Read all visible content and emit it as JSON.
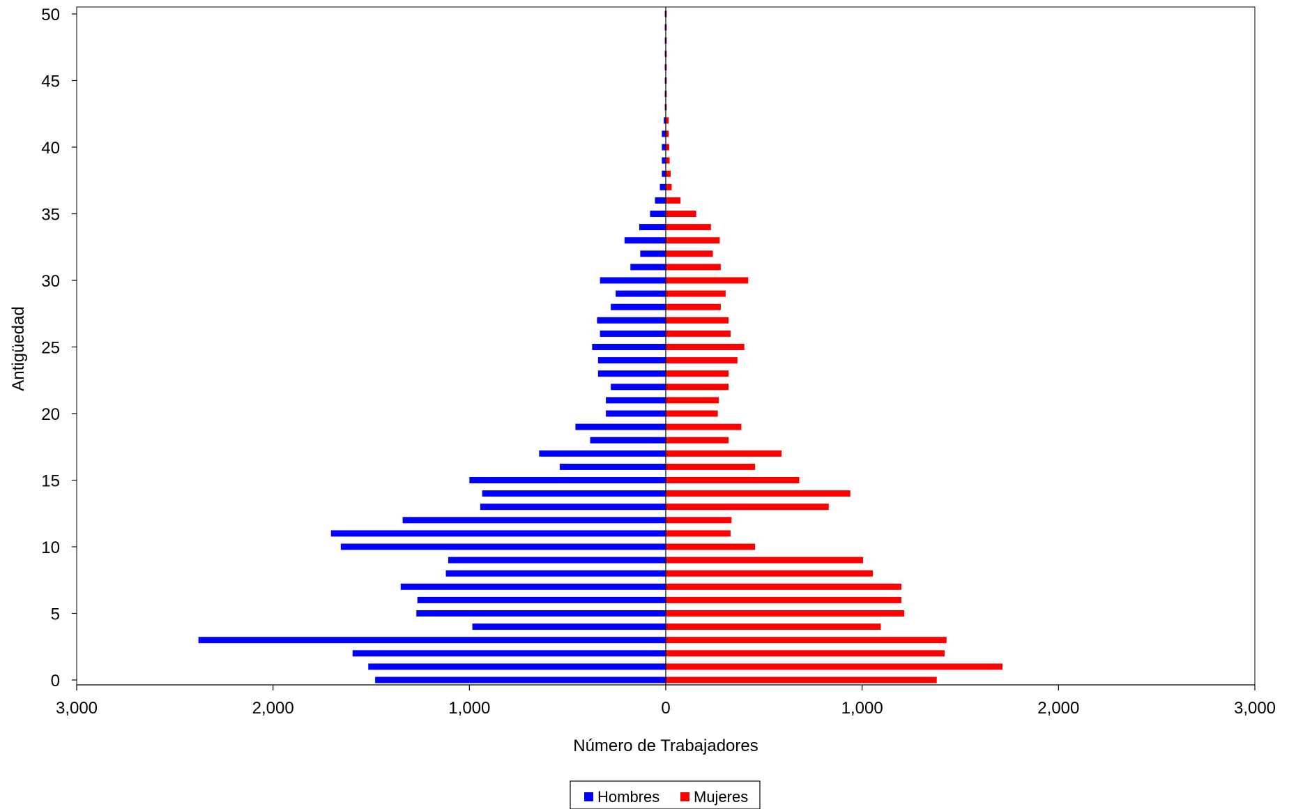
{
  "chart_data": {
    "type": "bar",
    "orientation": "horizontal",
    "layout": "population-pyramid",
    "xlabel": "Número de Trabajadores",
    "ylabel": "Antigüedad",
    "xlim": [
      -3000,
      3000
    ],
    "ylim": [
      0,
      50
    ],
    "x_ticks": [
      -3000,
      -2000,
      -1000,
      0,
      1000,
      2000,
      3000
    ],
    "x_tick_labels": [
      "3,000",
      "2,000",
      "1,000",
      "0",
      "1,000",
      "2,000",
      "3,000"
    ],
    "y_ticks": [
      0,
      5,
      10,
      15,
      20,
      25,
      30,
      35,
      40,
      45,
      50
    ],
    "y_tick_labels": [
      "0",
      "5",
      "10",
      "15",
      "20",
      "25",
      "30",
      "35",
      "40",
      "45",
      "50"
    ],
    "grid": false,
    "legend_position": "bottom",
    "categories": [
      0,
      1,
      2,
      3,
      4,
      5,
      6,
      7,
      8,
      9,
      10,
      11,
      12,
      13,
      14,
      15,
      16,
      17,
      18,
      19,
      20,
      21,
      22,
      23,
      24,
      25,
      26,
      27,
      28,
      29,
      30,
      31,
      32,
      33,
      34,
      35,
      36,
      37,
      38,
      39,
      40,
      41,
      42,
      43,
      44,
      45,
      46,
      47,
      48,
      49,
      50
    ],
    "series": [
      {
        "name": "Hombres",
        "color": "#0000FF",
        "side": "left",
        "values": [
          1480,
          1515,
          1595,
          2380,
          985,
          1270,
          1265,
          1350,
          1120,
          1108,
          1655,
          1705,
          1340,
          945,
          935,
          1000,
          540,
          645,
          385,
          460,
          305,
          305,
          280,
          345,
          345,
          375,
          335,
          350,
          280,
          255,
          335,
          180,
          130,
          210,
          135,
          80,
          55,
          30,
          20,
          20,
          20,
          20,
          10,
          5,
          5,
          5,
          5,
          5,
          5,
          5,
          5
        ]
      },
      {
        "name": "Mujeres",
        "color": "#FF0000",
        "side": "right",
        "values": [
          1380,
          1715,
          1420,
          1430,
          1095,
          1215,
          1200,
          1200,
          1055,
          1005,
          455,
          330,
          335,
          830,
          940,
          680,
          455,
          590,
          320,
          385,
          265,
          270,
          320,
          320,
          365,
          400,
          330,
          320,
          280,
          305,
          420,
          280,
          240,
          275,
          230,
          155,
          75,
          30,
          25,
          20,
          18,
          15,
          15,
          5,
          5,
          5,
          5,
          5,
          5,
          5,
          5
        ]
      }
    ]
  }
}
